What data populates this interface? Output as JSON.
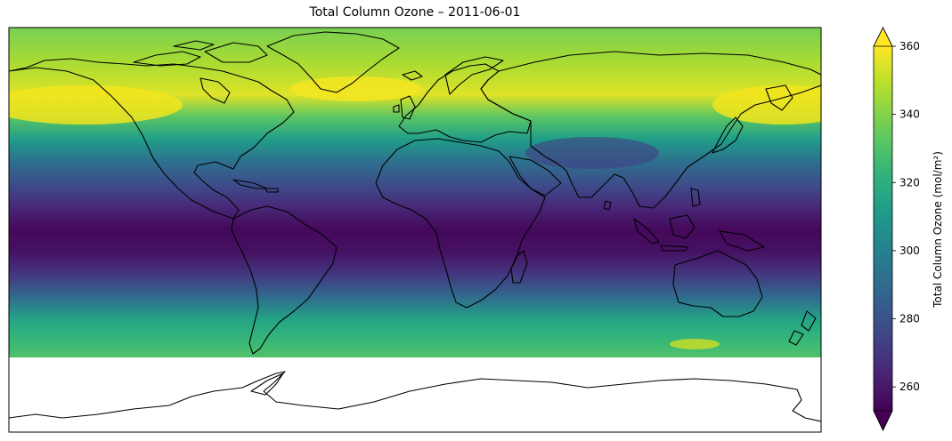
{
  "title": "Total Column Ozone – 2011-06-01",
  "colorbar": {
    "label": "Total Column Ozone (mol/m²)",
    "ticks": [
      260,
      280,
      300,
      320,
      340,
      360
    ],
    "range": [
      253,
      360
    ],
    "extend": "both",
    "colormap": "viridis"
  },
  "chart_data": {
    "type": "heatmap",
    "title": "Total Column Ozone – 2011-06-01",
    "projection": "PlateCarree",
    "variable": "Total Column Ozone",
    "units": "mol/m²",
    "date": "2011-06-01",
    "lat": [
      90,
      75,
      60,
      50,
      40,
      30,
      20,
      10,
      0,
      -10,
      -20,
      -30,
      -40,
      -50,
      -57
    ],
    "zonal_mean_values": [
      338,
      346,
      355,
      332,
      312,
      292,
      278,
      265,
      255,
      258,
      270,
      290,
      315,
      325,
      330
    ],
    "colorbar_ticks": [
      260,
      280,
      300,
      320,
      340,
      360
    ],
    "vmin": 253,
    "vmax": 360,
    "missing_data_region": "south of 57°S (Antarctica, white)",
    "colors": {
      "low": "#440154",
      "mid": "#21918c",
      "high": "#fde725"
    }
  }
}
